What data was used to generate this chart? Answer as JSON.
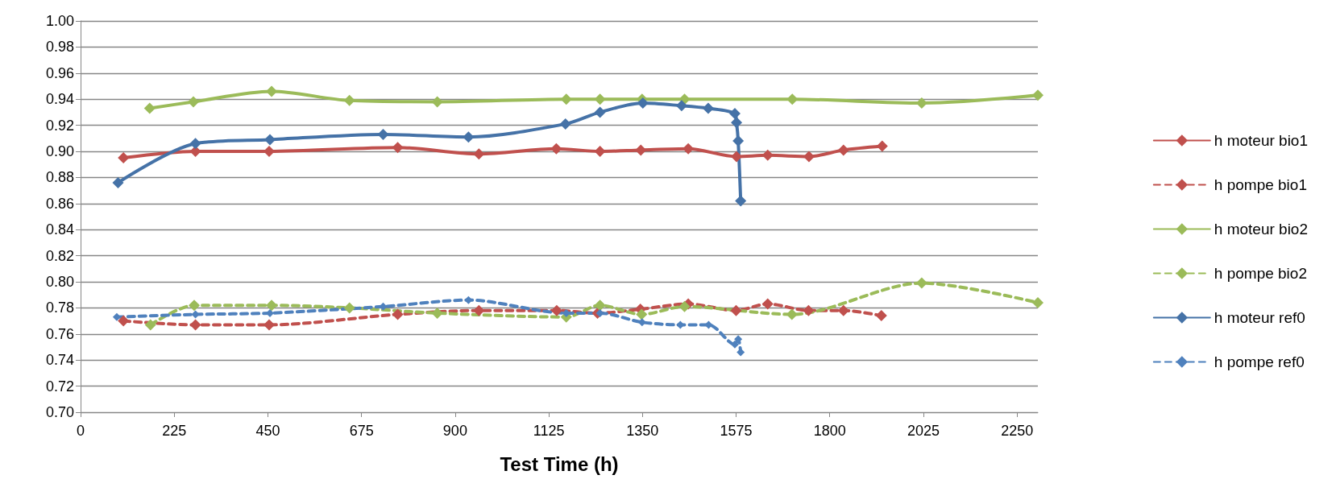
{
  "chart_data": {
    "type": "line",
    "xlabel": "Test Time (h)",
    "xlim": [
      0,
      2300
    ],
    "xticks": [
      0,
      225,
      450,
      675,
      900,
      1125,
      1350,
      1575,
      1800,
      2025,
      2250
    ],
    "ylim": [
      0.7,
      1.0
    ],
    "yticks": [
      {
        "value": 0.7,
        "label": "0.70"
      },
      {
        "value": 0.72,
        "label": "0.72"
      },
      {
        "value": 0.74,
        "label": "0.74"
      },
      {
        "value": 0.76,
        "label": "0.76"
      },
      {
        "value": 0.78,
        "label": "0.78"
      },
      {
        "value": 0.8,
        "label": "0.80"
      },
      {
        "value": 0.82,
        "label": "0.82"
      },
      {
        "value": 0.84,
        "label": "0.84"
      },
      {
        "value": 0.86,
        "label": "0.86"
      },
      {
        "value": 0.88,
        "label": "0.88"
      },
      {
        "value": 0.9,
        "label": "0.90"
      },
      {
        "value": 0.92,
        "label": "0.92"
      },
      {
        "value": 0.94,
        "label": "0.94"
      },
      {
        "value": 0.96,
        "label": "0.96"
      },
      {
        "value": 0.98,
        "label": "0.98"
      },
      {
        "value": 1.0,
        "label": "1.00"
      }
    ],
    "grid": "y",
    "legend": "right",
    "marker": "diamond",
    "series": [
      {
        "name": "h moteur bio1",
        "color": "#c0504d",
        "line_style": "solid",
        "x": [
          103,
          276,
          453,
          762,
          957,
          1143,
          1248,
          1346,
          1460,
          1576,
          1651,
          1750,
          1833,
          1926
        ],
        "values": [
          0.895,
          0.9,
          0.9,
          0.903,
          0.898,
          0.902,
          0.9,
          0.901,
          0.902,
          0.896,
          0.897,
          0.896,
          0.901,
          0.904
        ]
      },
      {
        "name": "h pompe bio1",
        "color": "#c0504d",
        "line_style": "dashed",
        "x": [
          103,
          276,
          453,
          762,
          957,
          1144,
          1242,
          1345,
          1460,
          1575,
          1651,
          1749,
          1833,
          1924
        ],
        "values": [
          0.77,
          0.767,
          0.767,
          0.775,
          0.778,
          0.778,
          0.776,
          0.779,
          0.783,
          0.778,
          0.783,
          0.778,
          0.778,
          0.774
        ]
      },
      {
        "name": "h moteur bio2",
        "color": "#9bbb59",
        "line_style": "solid",
        "x": [
          166,
          271,
          459,
          646,
          857,
          1167,
          1248,
          1349,
          1451,
          1710,
          2021,
          2300
        ],
        "values": [
          0.933,
          0.938,
          0.946,
          0.939,
          0.938,
          0.94,
          0.94,
          0.94,
          0.94,
          0.94,
          0.937,
          0.943
        ]
      },
      {
        "name": "h pompe bio2",
        "color": "#9bbb59",
        "line_style": "dashed",
        "x": [
          168,
          273,
          459,
          646,
          857,
          1167,
          1248,
          1348,
          1451,
          1709,
          2021,
          2300
        ],
        "values": [
          0.767,
          0.782,
          0.782,
          0.78,
          0.776,
          0.773,
          0.782,
          0.775,
          0.781,
          0.775,
          0.799,
          0.784
        ]
      },
      {
        "name": "h moteur ref0",
        "color": "#4572a7",
        "line_style": "solid",
        "x": [
          90,
          276,
          455,
          727,
          932,
          1165,
          1248,
          1351,
          1444,
          1508,
          1572,
          1576,
          1580,
          1586
        ],
        "values": [
          0.876,
          0.906,
          0.909,
          0.913,
          0.911,
          0.921,
          0.93,
          0.937,
          0.935,
          0.933,
          0.929,
          0.922,
          0.908,
          0.862
        ]
      },
      {
        "name": "h pompe ref0",
        "color": "#4f81bd",
        "line_style": "dashed",
        "x": [
          87,
          276,
          455,
          727,
          932,
          1167,
          1248,
          1349,
          1441,
          1509,
          1572,
          1580,
          1586
        ],
        "values": [
          0.773,
          0.775,
          0.776,
          0.781,
          0.786,
          0.776,
          0.776,
          0.769,
          0.767,
          0.767,
          0.752,
          0.756,
          0.746
        ]
      }
    ]
  }
}
